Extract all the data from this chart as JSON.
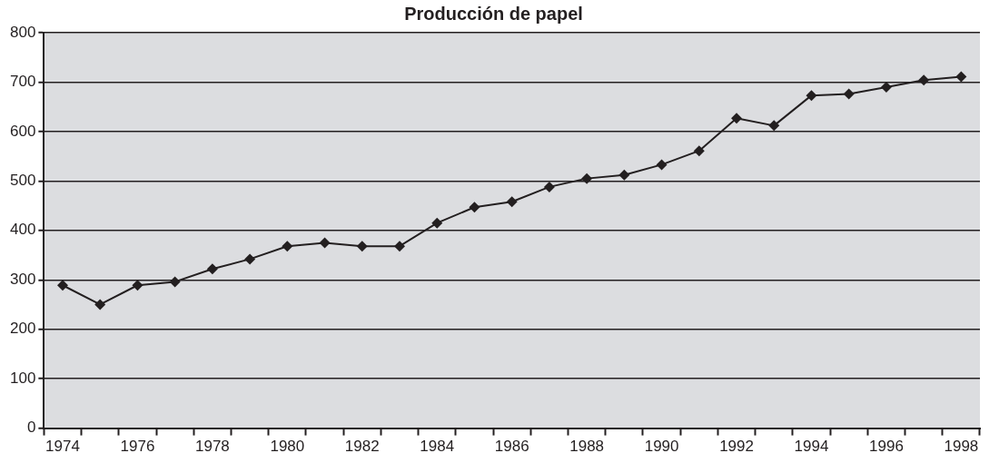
{
  "chart_data": {
    "type": "line",
    "title": "Producción de papel",
    "categories": [
      "1974",
      null,
      "1976",
      null,
      "1978",
      null,
      "1980",
      null,
      "1982",
      null,
      "1984",
      null,
      "1986",
      null,
      "1988",
      null,
      "1990",
      null,
      "1992",
      null,
      "1994",
      null,
      "1996",
      null,
      "1998"
    ],
    "series": [
      {
        "color": "#231f20",
        "values": [
          289,
          250,
          289,
          296,
          322,
          342,
          368,
          375,
          368,
          368,
          415,
          447,
          458,
          488,
          505,
          512,
          533,
          561,
          627,
          612,
          673,
          676,
          690,
          704,
          711
        ]
      }
    ],
    "ylim": [
      0,
      800
    ],
    "yticks": [
      0,
      100,
      200,
      300,
      400,
      500,
      600,
      700,
      800
    ],
    "grid": "y",
    "marker": "diamond",
    "legend": false
  }
}
